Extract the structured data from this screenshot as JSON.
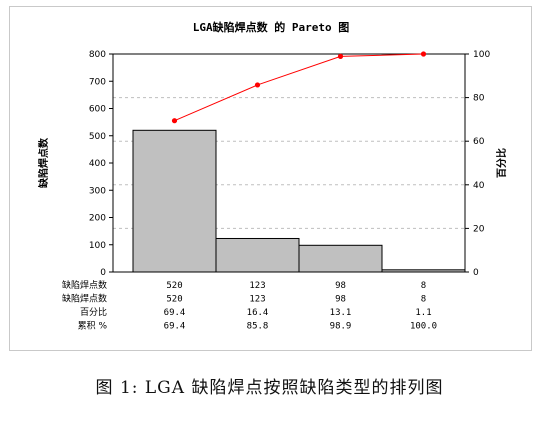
{
  "caption": "图 1: LGA 缺陷焊点按照缺陷类型的排列图",
  "chart_data": {
    "type": "bar",
    "title": "LGA缺陷焊点数 的 Pareto 图",
    "ylabel": "缺陷焊点数",
    "y2label": "百分比",
    "ylim": [
      0,
      800
    ],
    "yticks": [
      0,
      100,
      200,
      300,
      400,
      500,
      600,
      700,
      800
    ],
    "y2lim": [
      0,
      100
    ],
    "y2ticks": [
      0,
      20,
      40,
      60,
      80,
      100
    ],
    "grid": "dashed-horizontal",
    "categories": [
      "",
      "",
      "",
      ""
    ],
    "values": [
      520,
      123,
      98,
      8
    ],
    "cumulative_line": [
      69.4,
      85.8,
      98.9,
      100.0
    ],
    "bar_color": "#c0c0c0",
    "line_color": "#ff0000",
    "table": {
      "header_label": "缺陷焊点数",
      "rows": [
        {
          "label": "缺陷焊点数",
          "values": [
            "520",
            "123",
            "98",
            "8"
          ]
        },
        {
          "label": "百分比",
          "values": [
            "69.4",
            "16.4",
            "13.1",
            "1.1"
          ]
        },
        {
          "label": "累积 %",
          "values": [
            "69.4",
            "85.8",
            "98.9",
            "100.0"
          ]
        }
      ]
    }
  }
}
